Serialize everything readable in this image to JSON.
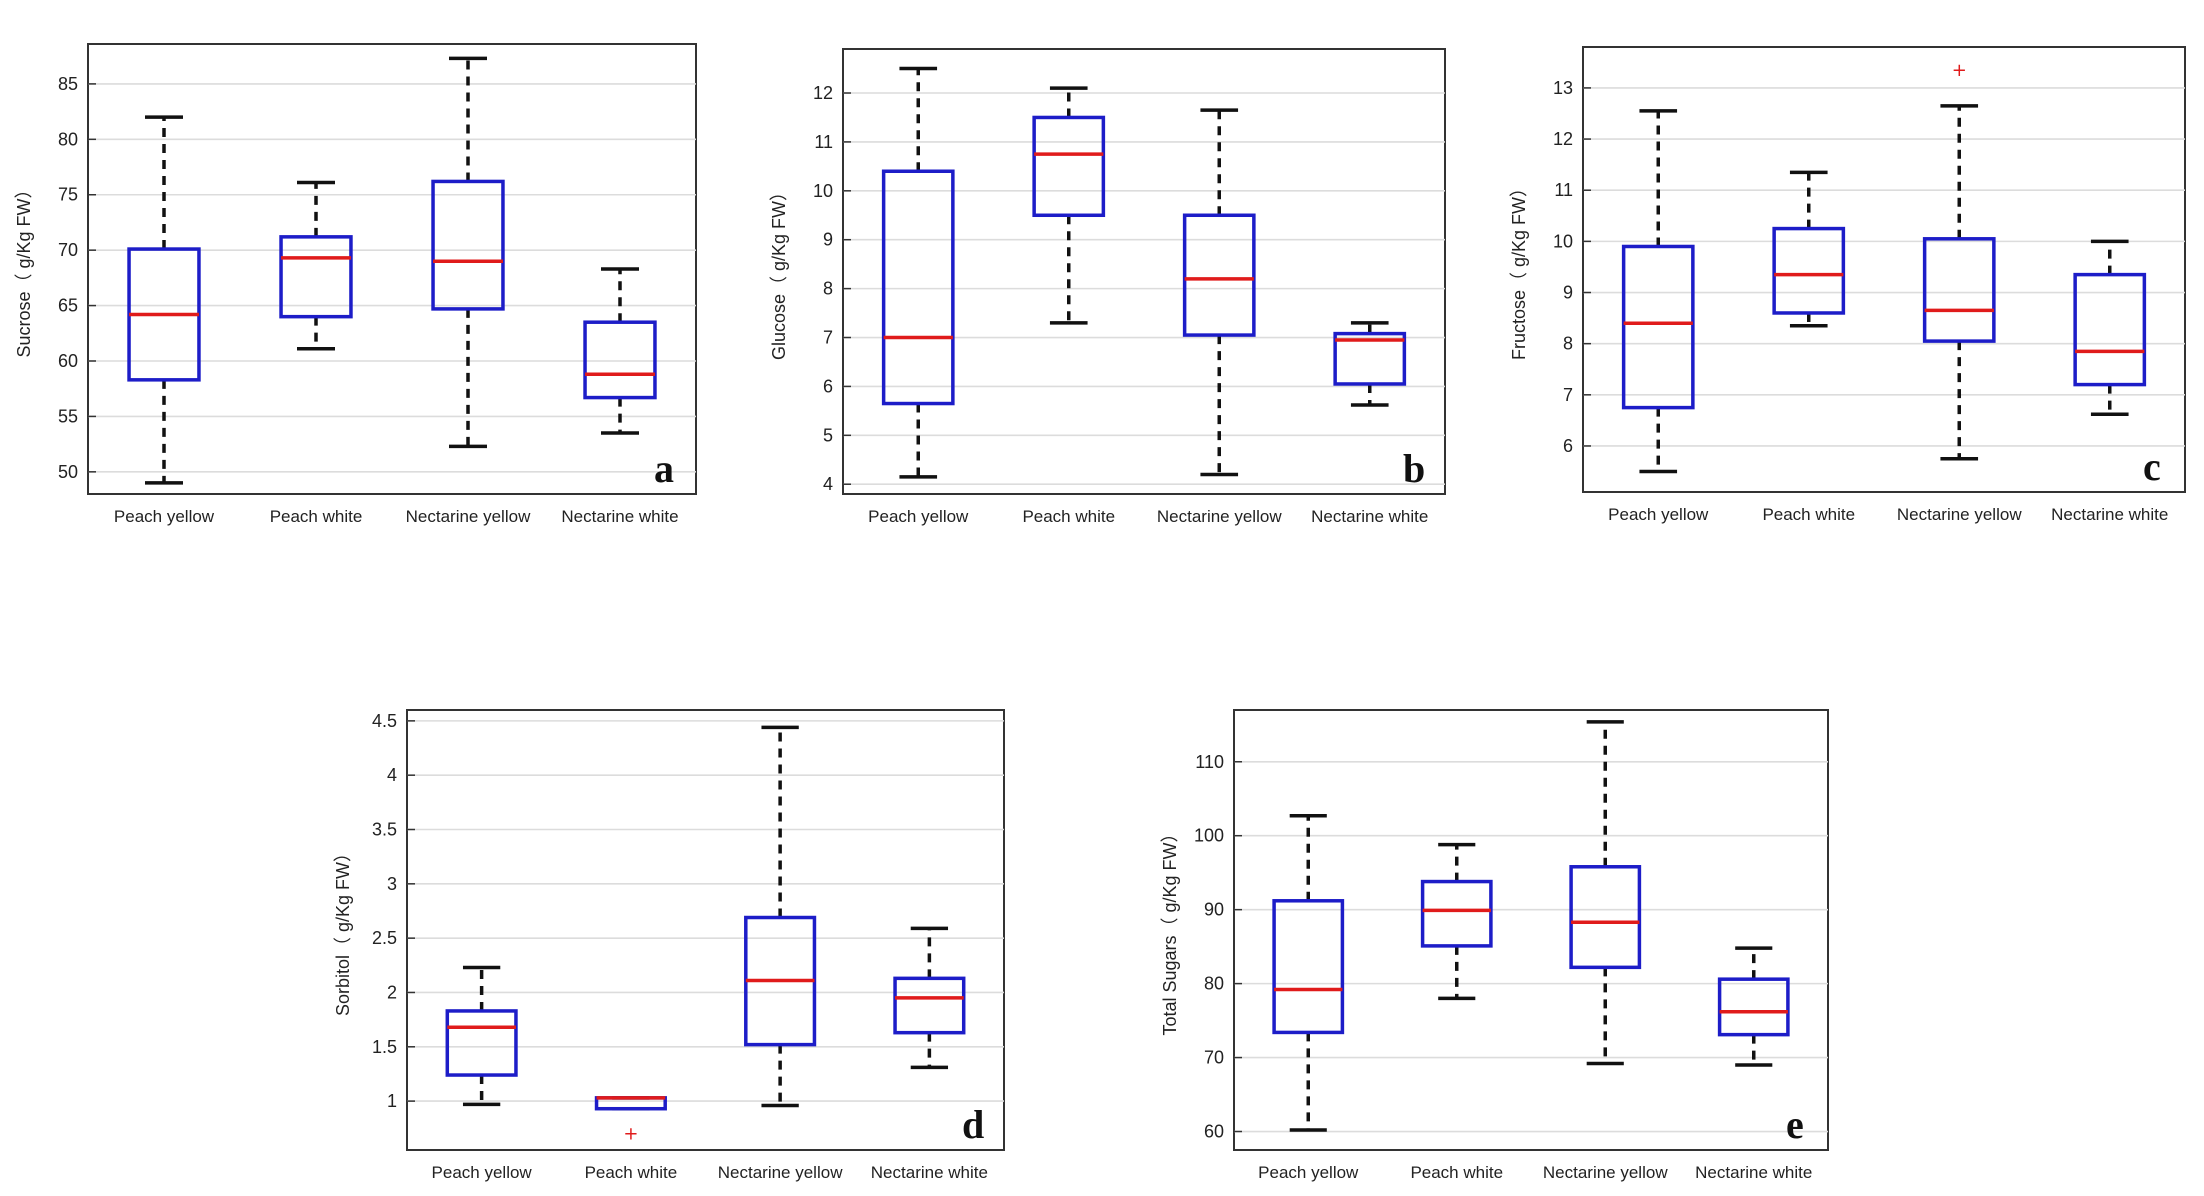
{
  "colors": {
    "box": "#1d1dc8",
    "median": "#e01b1b",
    "whisker": "#111111",
    "grid": "#dcdcdc",
    "outlier": "#e01b1b"
  },
  "chart_data": [
    {
      "type": "boxplot",
      "panel_label": "a",
      "ylabel": "Sucrose（ g/Kg FW）",
      "categories": [
        "Peach yellow",
        "Peach white",
        "Nectarine yellow",
        "Nectarine white"
      ],
      "ylim": [
        48,
        88.6
      ],
      "yticks": [
        50,
        55,
        60,
        65,
        70,
        75,
        80,
        85
      ],
      "ytick_labels": [
        "50",
        "55",
        "60",
        "65",
        "70",
        "75",
        "80",
        "85"
      ],
      "grid": true,
      "boxes": [
        {
          "min": 49,
          "q1": 58.3,
          "median": 64.2,
          "q3": 70.1,
          "max": 82,
          "outliers": []
        },
        {
          "min": 61.1,
          "q1": 64,
          "median": 69.3,
          "q3": 71.2,
          "max": 76.1,
          "outliers": []
        },
        {
          "min": 52.3,
          "q1": 64.7,
          "median": 69,
          "q3": 76.2,
          "max": 87.3,
          "outliers": []
        },
        {
          "min": 53.5,
          "q1": 56.7,
          "median": 58.8,
          "q3": 63.5,
          "max": 68.3,
          "outliers": []
        }
      ]
    },
    {
      "type": "boxplot",
      "panel_label": "b",
      "ylabel": "Glucose（ g/Kg FW）",
      "categories": [
        "Peach yellow",
        "Peach white",
        "Nectarine yellow",
        "Nectarine white"
      ],
      "ylim": [
        3.8,
        12.9
      ],
      "yticks": [
        4,
        5,
        6,
        7,
        8,
        9,
        10,
        11,
        12
      ],
      "ytick_labels": [
        "4",
        "5",
        "6",
        "7",
        "8",
        "9",
        "10",
        "11",
        "12"
      ],
      "grid": true,
      "boxes": [
        {
          "min": 4.15,
          "q1": 5.65,
          "median": 7.0,
          "q3": 10.4,
          "max": 12.5,
          "outliers": []
        },
        {
          "min": 7.3,
          "q1": 9.5,
          "median": 10.75,
          "q3": 11.5,
          "max": 12.1,
          "outliers": []
        },
        {
          "min": 4.2,
          "q1": 7.05,
          "median": 8.2,
          "q3": 9.5,
          "max": 11.65,
          "outliers": []
        },
        {
          "min": 5.62,
          "q1": 6.05,
          "median": 6.95,
          "q3": 7.08,
          "max": 7.3,
          "outliers": []
        }
      ]
    },
    {
      "type": "boxplot",
      "panel_label": "c",
      "ylabel": "Fructose（ g/Kg FW）",
      "categories": [
        "Peach yellow",
        "Peach white",
        "Nectarine yellow",
        "Nectarine white"
      ],
      "ylim": [
        5.1,
        13.8
      ],
      "yticks": [
        6,
        7,
        8,
        9,
        10,
        11,
        12,
        13
      ],
      "ytick_labels": [
        "6",
        "7",
        "8",
        "9",
        "10",
        "11",
        "12",
        "13"
      ],
      "grid": true,
      "boxes": [
        {
          "min": 5.5,
          "q1": 6.75,
          "median": 8.4,
          "q3": 9.9,
          "max": 12.55,
          "outliers": []
        },
        {
          "min": 8.35,
          "q1": 8.6,
          "median": 9.35,
          "q3": 10.25,
          "max": 11.35,
          "outliers": []
        },
        {
          "min": 5.75,
          "q1": 8.05,
          "median": 8.65,
          "q3": 10.05,
          "max": 12.65,
          "outliers": [
            13.35
          ]
        },
        {
          "min": 6.62,
          "q1": 7.2,
          "median": 7.85,
          "q3": 9.35,
          "max": 10.0,
          "outliers": []
        }
      ]
    },
    {
      "type": "boxplot",
      "panel_label": "d",
      "ylabel": "Sorbitol（ g/Kg FW）",
      "categories": [
        "Peach yellow",
        "Peach white",
        "Nectarine yellow",
        "Nectarine white"
      ],
      "ylim": [
        0.55,
        4.6
      ],
      "yticks": [
        1,
        1.5,
        2,
        2.5,
        3,
        3.5,
        4,
        4.5
      ],
      "ytick_labels": [
        "1",
        "1.5",
        "2",
        "2.5",
        "3",
        "3.5",
        "4",
        "4.5"
      ],
      "grid": true,
      "boxes": [
        {
          "min": 0.97,
          "q1": 1.24,
          "median": 1.68,
          "q3": 1.83,
          "max": 2.23,
          "outliers": []
        },
        {
          "min": 0.93,
          "q1": 0.93,
          "median": 1.03,
          "q3": 1.03,
          "max": 1.03,
          "outliers": [
            0.7
          ]
        },
        {
          "min": 0.96,
          "q1": 1.52,
          "median": 2.11,
          "q3": 2.69,
          "max": 4.44,
          "outliers": []
        },
        {
          "min": 1.31,
          "q1": 1.63,
          "median": 1.95,
          "q3": 2.13,
          "max": 2.59,
          "outliers": []
        }
      ]
    },
    {
      "type": "boxplot",
      "panel_label": "e",
      "ylabel": "Total Sugars（ g/Kg FW）",
      "categories": [
        "Peach yellow",
        "Peach white",
        "Nectarine yellow",
        "Nectarine white"
      ],
      "ylim": [
        57.5,
        117
      ],
      "yticks": [
        60,
        70,
        80,
        90,
        100,
        110
      ],
      "ytick_labels": [
        "60",
        "70",
        "80",
        "90",
        "100",
        "110"
      ],
      "grid": true,
      "boxes": [
        {
          "min": 60.2,
          "q1": 73.4,
          "median": 79.2,
          "q3": 91.2,
          "max": 102.7,
          "outliers": []
        },
        {
          "min": 78,
          "q1": 85.1,
          "median": 89.9,
          "q3": 93.8,
          "max": 98.8,
          "outliers": []
        },
        {
          "min": 69.2,
          "q1": 82.2,
          "median": 88.3,
          "q3": 95.8,
          "max": 115.4,
          "outliers": []
        },
        {
          "min": 69,
          "q1": 73.1,
          "median": 76.2,
          "q3": 80.6,
          "max": 84.8,
          "outliers": []
        }
      ]
    }
  ]
}
